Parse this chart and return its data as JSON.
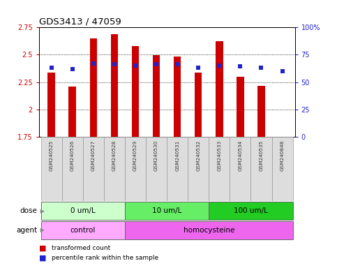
{
  "title": "GDS3413 / 47059",
  "samples": [
    "GSM240525",
    "GSM240526",
    "GSM240527",
    "GSM240528",
    "GSM240529",
    "GSM240530",
    "GSM240531",
    "GSM240532",
    "GSM240533",
    "GSM240534",
    "GSM240535",
    "GSM240848"
  ],
  "bar_values": [
    2.335,
    2.21,
    2.645,
    2.685,
    2.58,
    2.495,
    2.485,
    2.335,
    2.62,
    2.295,
    2.215,
    1.74
  ],
  "percentile_values": [
    63,
    62,
    67,
    66,
    65,
    66,
    66,
    63,
    65,
    64,
    63,
    60
  ],
  "ylim_left": [
    1.75,
    2.75
  ],
  "ylim_right": [
    0,
    100
  ],
  "yticks_left": [
    1.75,
    2.0,
    2.25,
    2.5,
    2.75
  ],
  "yticks_right": [
    0,
    25,
    50,
    75,
    100
  ],
  "bar_color": "#cc0000",
  "percentile_color": "#2222cc",
  "bar_bottom": 1.75,
  "dose_groups": [
    {
      "label": "0 um/L",
      "start": 0,
      "end": 4,
      "color": "#ccffcc"
    },
    {
      "label": "10 um/L",
      "start": 4,
      "end": 8,
      "color": "#66ee66"
    },
    {
      "label": "100 um/L",
      "start": 8,
      "end": 12,
      "color": "#22cc22"
    }
  ],
  "agent_groups": [
    {
      "label": "control",
      "start": 0,
      "end": 4,
      "color": "#ffaaff"
    },
    {
      "label": "homocysteine",
      "start": 4,
      "end": 12,
      "color": "#ee66ee"
    }
  ],
  "dose_label": "dose",
  "agent_label": "agent",
  "legend_bar_label": "transformed count",
  "legend_pct_label": "percentile rank within the sample",
  "sample_bg_color": "#dddddd",
  "bar_width": 0.35
}
